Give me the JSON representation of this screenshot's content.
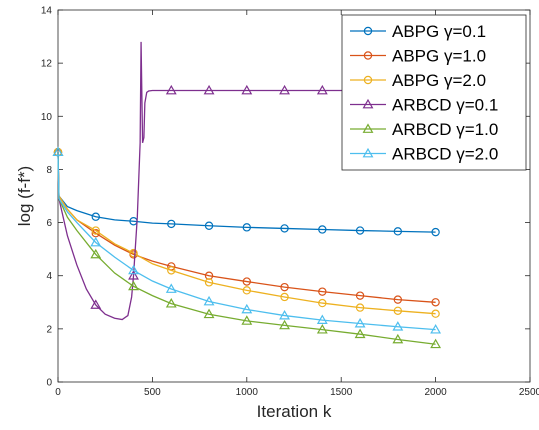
{
  "chart_data": {
    "type": "line",
    "xlabel": "Iteration k",
    "ylabel": "log (f-f*)",
    "xlim": [
      0,
      2500
    ],
    "ylim": [
      0,
      14
    ],
    "xticks": [
      0,
      500,
      1000,
      1500,
      2000,
      2500
    ],
    "yticks": [
      0,
      2,
      4,
      6,
      8,
      10,
      12,
      14
    ],
    "grid": false,
    "legend_position": "top-right",
    "series": [
      {
        "name": "ABPG γ=0.1",
        "color": "#0072bd",
        "marker": "circle",
        "x": [
          0,
          5,
          50,
          100,
          200,
          300,
          400,
          500,
          600,
          800,
          1000,
          1200,
          1400,
          1600,
          1800,
          2000
        ],
        "y": [
          8.65,
          7.0,
          6.6,
          6.45,
          6.22,
          6.1,
          6.05,
          5.98,
          5.95,
          5.88,
          5.82,
          5.78,
          5.74,
          5.7,
          5.67,
          5.64
        ]
      },
      {
        "name": "ABPG γ=1.0",
        "color": "#d95319",
        "marker": "circle",
        "x": [
          0,
          5,
          50,
          100,
          200,
          300,
          400,
          500,
          600,
          800,
          1000,
          1200,
          1400,
          1600,
          1800,
          2000
        ],
        "y": [
          8.65,
          7.0,
          6.5,
          6.1,
          5.6,
          5.15,
          4.8,
          4.55,
          4.35,
          4.0,
          3.78,
          3.57,
          3.4,
          3.25,
          3.1,
          3.0
        ]
      },
      {
        "name": "ABPG γ=2.0",
        "color": "#edb120",
        "marker": "circle",
        "x": [
          0,
          5,
          50,
          100,
          200,
          300,
          400,
          500,
          600,
          800,
          1000,
          1200,
          1400,
          1600,
          1800,
          2000
        ],
        "y": [
          8.65,
          7.0,
          6.5,
          6.1,
          5.7,
          5.2,
          4.85,
          4.45,
          4.2,
          3.75,
          3.45,
          3.2,
          2.97,
          2.8,
          2.68,
          2.57
        ]
      },
      {
        "name": "ARBCD γ=0.1",
        "color": "#7e2f8e",
        "marker": "triangle",
        "x": [
          0,
          5,
          50,
          100,
          150,
          200,
          250,
          300,
          340,
          370,
          390,
          400,
          420,
          435,
          440,
          448,
          455,
          460,
          470,
          480,
          500,
          600,
          800,
          1000,
          1200,
          1400,
          1600,
          1800,
          2000
        ],
        "y": [
          8.65,
          6.9,
          5.5,
          4.4,
          3.5,
          2.9,
          2.55,
          2.4,
          2.35,
          2.5,
          3.2,
          4.0,
          6.2,
          9.0,
          12.8,
          9.0,
          9.2,
          10.5,
          10.9,
          10.95,
          10.97,
          10.97,
          10.97,
          10.97,
          10.97,
          10.97,
          10.97,
          10.97,
          10.97
        ]
      },
      {
        "name": "ARBCD γ=1.0",
        "color": "#77ac30",
        "marker": "triangle",
        "x": [
          0,
          5,
          50,
          100,
          200,
          300,
          400,
          500,
          600,
          800,
          1000,
          1200,
          1400,
          1600,
          1800,
          2000
        ],
        "y": [
          8.65,
          6.9,
          6.2,
          5.7,
          4.8,
          4.1,
          3.6,
          3.25,
          2.95,
          2.55,
          2.3,
          2.13,
          1.97,
          1.8,
          1.6,
          1.42
        ]
      },
      {
        "name": "ARBCD γ=2.0",
        "color": "#4dbeee",
        "marker": "triangle",
        "x": [
          0,
          5,
          50,
          100,
          200,
          300,
          400,
          500,
          600,
          800,
          1000,
          1200,
          1400,
          1600,
          1800,
          2000
        ],
        "y": [
          8.65,
          6.9,
          6.4,
          6.0,
          5.25,
          4.7,
          4.2,
          3.8,
          3.5,
          3.03,
          2.73,
          2.5,
          2.33,
          2.2,
          2.08,
          1.97
        ]
      }
    ],
    "marker_x": [
      0,
      200,
      400,
      600,
      800,
      1000,
      1200,
      1400,
      1600,
      1800,
      2000
    ]
  }
}
